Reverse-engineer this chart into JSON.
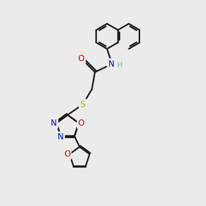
{
  "bg_color": "#ebebeb",
  "bond_color": "#1a1a1a",
  "bond_width": 1.6,
  "atom_colors": {
    "N": "#0000cc",
    "O": "#cc0000",
    "S": "#aaaa00",
    "H": "#6aafaf",
    "C": "#1a1a1a"
  },
  "font_size": 8.5,
  "fig_size": [
    3.0,
    3.0
  ],
  "dpi": 100
}
